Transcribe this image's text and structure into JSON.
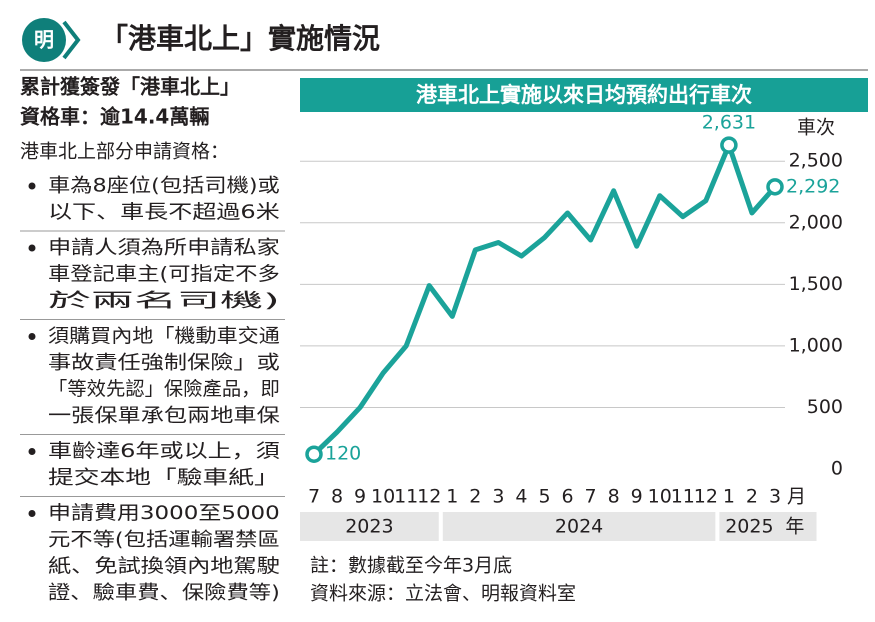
{
  "header": {
    "logo": "明",
    "title": "「港車北上」實施情況"
  },
  "sidebar": {
    "headline": [
      "累計獲簽發「港車北上」",
      "資格車：逾14.4萬輛"
    ],
    "intro": "港車北上部分申請資格：",
    "bullets": [
      [
        "車為8座位(包括司機)或",
        "以下、車長不超過6米"
      ],
      [
        "申請人須為所申請私家",
        "車登記車主(可指定不多",
        "於兩名司機)"
      ],
      [
        "須購買內地「機動車交通",
        "事故責任強制保險」或",
        "「等效先認」保險產品，即",
        "一張保單承包兩地車保"
      ],
      [
        "車齡達6年或以上，須",
        "提交本地「驗車紙」"
      ],
      [
        "申請費用3000至5000",
        "元不等(包括運輸署禁區",
        "紙、免試換領內地駕駛",
        "證、驗車費、保險費等)"
      ]
    ]
  },
  "chart_data": {
    "type": "line",
    "title": "港車北上實施以來日均預約出行車次",
    "y_unit": "車次",
    "x_unit": "月",
    "year_unit": "年",
    "categories": [
      "7",
      "8",
      "9",
      "10",
      "11",
      "12",
      "1",
      "2",
      "3",
      "4",
      "5",
      "6",
      "7",
      "8",
      "9",
      "10",
      "11",
      "12",
      "1",
      "2",
      "3"
    ],
    "years": [
      {
        "label": "2023",
        "count": 6
      },
      {
        "label": "2024",
        "count": 12
      },
      {
        "label": "2025",
        "count": 3
      }
    ],
    "values": [
      120,
      300,
      500,
      780,
      1000,
      1490,
      1240,
      1780,
      1840,
      1730,
      1880,
      2080,
      1860,
      2260,
      1810,
      2220,
      2050,
      2180,
      2631,
      2080,
      2292
    ],
    "value_labels": [
      "120",
      null,
      null,
      null,
      null,
      null,
      null,
      null,
      null,
      null,
      null,
      null,
      null,
      null,
      null,
      null,
      null,
      null,
      "2,631",
      null,
      "2,292"
    ],
    "color": "#1ba39a",
    "ylim": [
      0,
      2900
    ],
    "yticks": [
      0,
      500,
      {
        "value": 1000,
        "label": "1,000"
      },
      {
        "value": 1500,
        "label": "1,500"
      },
      {
        "value": 2000,
        "label": "2,000"
      },
      {
        "value": 2500,
        "label": "2,500"
      }
    ],
    "grid": true
  },
  "notes": [
    "註：數據截至今年3月底",
    "資料來源：立法會、明報資料室"
  ]
}
